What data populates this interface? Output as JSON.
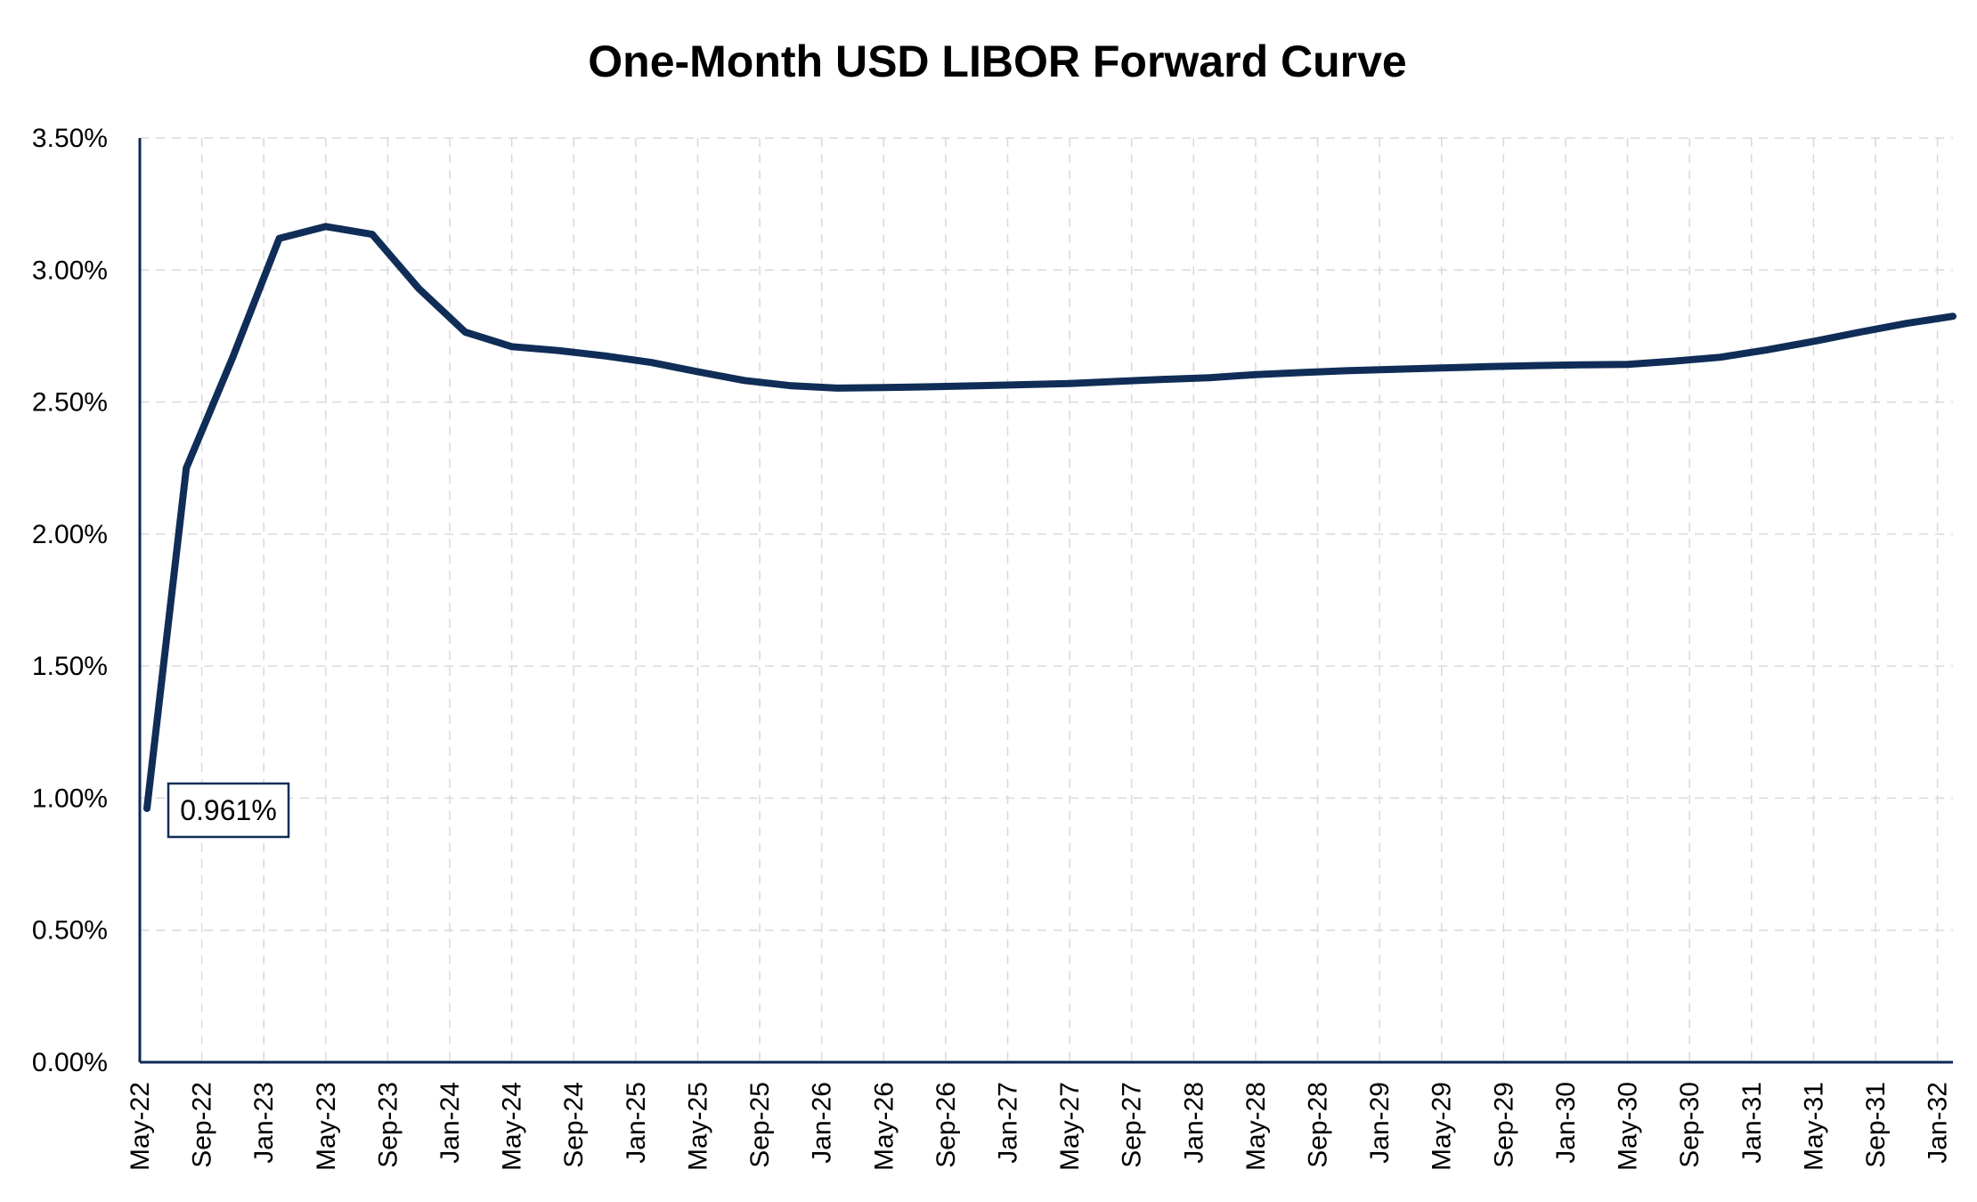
{
  "chart_data": {
    "type": "line",
    "title": "One-Month USD LIBOR Forward Curve",
    "xlabel": "",
    "ylabel": "",
    "ylim": [
      0,
      3.5
    ],
    "y_ticks": [
      "0.00%",
      "0.50%",
      "1.00%",
      "1.50%",
      "2.00%",
      "2.50%",
      "3.00%",
      "3.50%"
    ],
    "y_tick_values": [
      0,
      0.5,
      1.0,
      1.5,
      2.0,
      2.5,
      3.0,
      3.5
    ],
    "x_tick_labels": [
      "May-22",
      "Sep-22",
      "Jan-23",
      "May-23",
      "Sep-23",
      "Jan-24",
      "May-24",
      "Sep-24",
      "Jan-25",
      "May-25",
      "Sep-25",
      "Jan-26",
      "May-26",
      "Sep-26",
      "Jan-27",
      "May-27",
      "Sep-27",
      "Jan-28",
      "May-28",
      "Sep-28",
      "Jan-29",
      "May-29",
      "Sep-29",
      "Jan-30",
      "May-30",
      "Sep-30",
      "Jan-31",
      "May-31",
      "Sep-31",
      "Jan-32"
    ],
    "grid": true,
    "legend": "none",
    "series": [
      {
        "color": "#0f2d57",
        "x": [
          "May-22",
          "Aug-22",
          "Nov-22",
          "Feb-23",
          "May-23",
          "Aug-23",
          "Nov-23",
          "Feb-24",
          "May-24",
          "Aug-24",
          "Nov-24",
          "Feb-25",
          "May-25",
          "Aug-25",
          "Nov-25",
          "Feb-26",
          "May-26",
          "Aug-26",
          "Nov-26",
          "Feb-27",
          "May-27",
          "Aug-27",
          "Nov-27",
          "Feb-28",
          "May-28",
          "Aug-28",
          "Nov-28",
          "Feb-29",
          "May-29",
          "Aug-29",
          "Nov-29",
          "Feb-30",
          "May-30",
          "Aug-30",
          "Nov-30",
          "Feb-31",
          "May-31",
          "Aug-31",
          "Nov-31",
          "Feb-32"
        ],
        "values": [
          0.961,
          2.25,
          2.67,
          3.12,
          3.165,
          3.135,
          2.93,
          2.765,
          2.71,
          2.695,
          2.675,
          2.65,
          2.615,
          2.582,
          2.562,
          2.553,
          2.555,
          2.558,
          2.562,
          2.566,
          2.57,
          2.578,
          2.586,
          2.592,
          2.604,
          2.612,
          2.619,
          2.624,
          2.629,
          2.634,
          2.638,
          2.641,
          2.643,
          2.655,
          2.67,
          2.698,
          2.73,
          2.765,
          2.798,
          2.825
        ]
      }
    ],
    "annotations": [
      {
        "text": "0.961%",
        "x": "May-22",
        "y": 0.961
      }
    ],
    "colors": {
      "line": "#0f2d57",
      "axis": "#0b2a55",
      "grid": "#d9d9d9"
    }
  }
}
